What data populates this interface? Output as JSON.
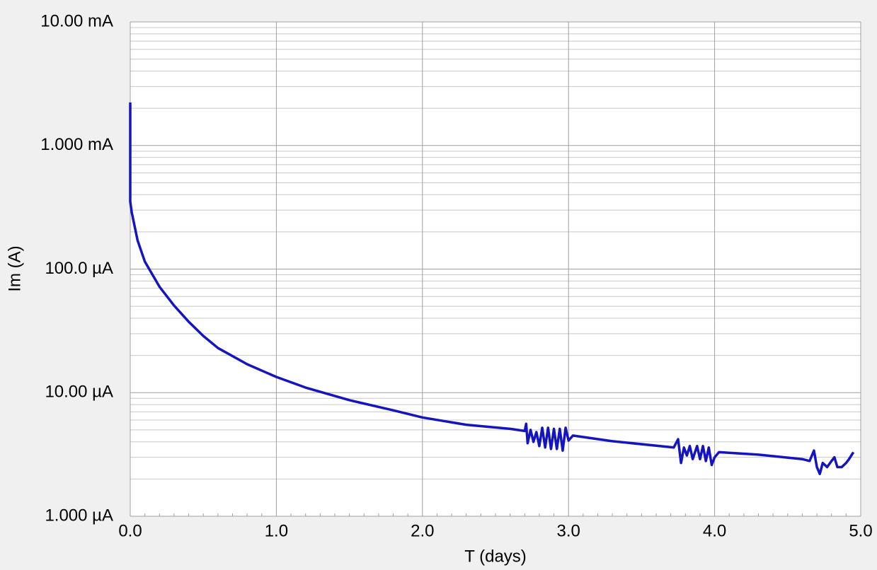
{
  "chart_data": {
    "type": "line",
    "xlabel": "T (days)",
    "ylabel": "Im (A)",
    "log_y": true,
    "grid": true,
    "color": "#1414c0",
    "xlim": [
      0,
      5
    ],
    "ylim": [
      1e-06,
      0.01
    ],
    "xticks": [
      {
        "value": 0,
        "label": "0.0"
      },
      {
        "value": 1,
        "label": "1.0"
      },
      {
        "value": 2,
        "label": "2.0"
      },
      {
        "value": 3,
        "label": "3.0"
      },
      {
        "value": 4,
        "label": "4.0"
      },
      {
        "value": 5,
        "label": "5.0"
      }
    ],
    "yticks": [
      {
        "value": 1e-06,
        "label": "1.000 µA"
      },
      {
        "value": 1e-05,
        "label": "10.00 µA"
      },
      {
        "value": 0.0001,
        "label": "100.0 µA"
      },
      {
        "value": 0.001,
        "label": "1.000 mA"
      },
      {
        "value": 0.01,
        "label": "10.00 mA"
      }
    ],
    "x": [
      0,
      0,
      0,
      0.01,
      0.05,
      0.1,
      0.2,
      0.3,
      0.4,
      0.5,
      0.6,
      0.8,
      1.0,
      1.2,
      1.5,
      1.8,
      2.0,
      2.3,
      2.6,
      2.7,
      2.71,
      2.72,
      2.74,
      2.76,
      2.78,
      2.8,
      2.82,
      2.84,
      2.86,
      2.88,
      2.9,
      2.92,
      2.94,
      2.96,
      2.98,
      3.0,
      3.03,
      3.3,
      3.72,
      3.75,
      3.77,
      3.79,
      3.81,
      3.83,
      3.85,
      3.88,
      3.9,
      3.92,
      3.94,
      3.96,
      3.98,
      4.0,
      4.03,
      4.3,
      4.6,
      4.65,
      4.68,
      4.7,
      4.72,
      4.74,
      4.77,
      4.8,
      4.82,
      4.84,
      4.87,
      4.9,
      4.92,
      4.95
    ],
    "values": [
      0.00223,
      0.000458,
      0.000352,
      0.000289,
      0.000171,
      0.000115,
      7.2e-05,
      5.07e-05,
      3.75e-05,
      2.88e-05,
      2.3e-05,
      1.7e-05,
      1.34e-05,
      1.1e-05,
      8.7e-06,
      7.2e-06,
      6.3e-06,
      5.5e-06,
      5.1e-06,
      4.9e-06,
      5.6e-06,
      3.9e-06,
      5e-06,
      4e-06,
      4.8e-06,
      3.7e-06,
      5.2e-06,
      3.6e-06,
      5.2e-06,
      3.5e-06,
      5.1e-06,
      3.5e-06,
      5.1e-06,
      3.4e-06,
      5.2e-06,
      4.1e-06,
      4.5e-06,
      4.05e-06,
      3.6e-06,
      4.2e-06,
      2.7e-06,
      3.6e-06,
      3.1e-06,
      3.7e-06,
      2.9e-06,
      3.7e-06,
      2.9e-06,
      3.7e-06,
      2.8e-06,
      3.6e-06,
      2.6e-06,
      3e-06,
      3.3e-06,
      3.15e-06,
      2.9e-06,
      2.8e-06,
      3.4e-06,
      2.5e-06,
      2.2e-06,
      2.7e-06,
      2.5e-06,
      2.8e-06,
      3e-06,
      2.5e-06,
      2.5e-06,
      2.7e-06,
      2.9e-06,
      3.3e-06
    ]
  }
}
